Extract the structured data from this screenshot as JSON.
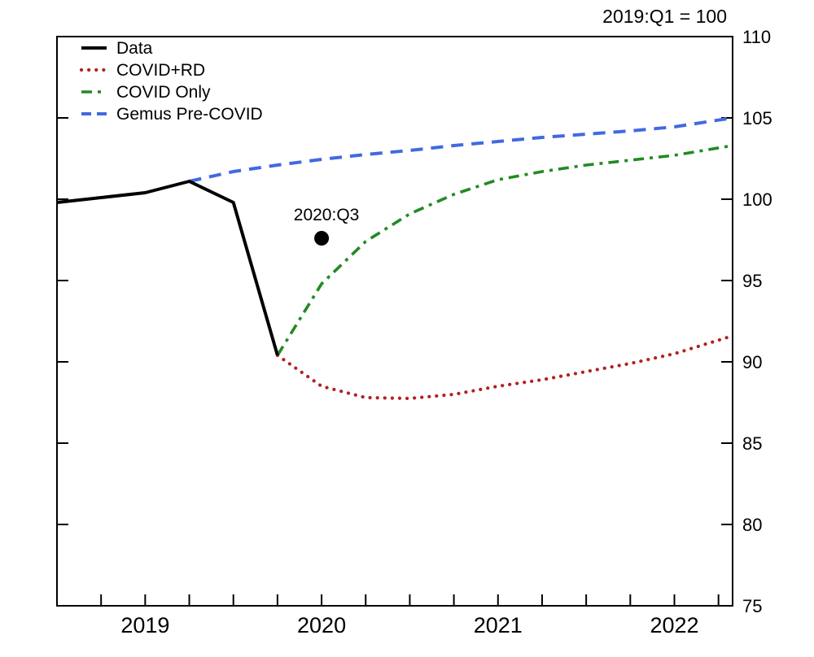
{
  "chart_data": {
    "type": "line",
    "title": "2019:Q1 = 100",
    "xlabel": "",
    "ylabel": "",
    "xlim": [
      2018.5,
      2022.33
    ],
    "ylim": [
      75,
      110
    ],
    "grid": false,
    "legend_position": "top-left",
    "y_ticks": [
      75,
      80,
      85,
      90,
      95,
      100,
      105,
      110
    ],
    "x_minor_tick_step": 0.25,
    "x_year_labels": [
      {
        "x": 2019,
        "label": "2019"
      },
      {
        "x": 2020,
        "label": "2020"
      },
      {
        "x": 2021,
        "label": "2021"
      },
      {
        "x": 2022,
        "label": "2022"
      }
    ],
    "series": [
      {
        "name": "Data",
        "color": "#000000",
        "style": "solid",
        "points": [
          [
            2018.5,
            99.8
          ],
          [
            2018.75,
            100.1
          ],
          [
            2019.0,
            100.4
          ],
          [
            2019.25,
            101.1
          ],
          [
            2019.5,
            99.8
          ],
          [
            2019.75,
            90.4
          ]
        ]
      },
      {
        "name": "COVID+RD",
        "color": "#b22222",
        "style": "dotted",
        "points": [
          [
            2019.75,
            90.4
          ],
          [
            2020.0,
            88.5
          ],
          [
            2020.25,
            87.8
          ],
          [
            2020.5,
            87.75
          ],
          [
            2020.75,
            88.0
          ],
          [
            2021.0,
            88.5
          ],
          [
            2021.25,
            88.9
          ],
          [
            2021.5,
            89.4
          ],
          [
            2021.75,
            89.9
          ],
          [
            2022.0,
            90.5
          ],
          [
            2022.33,
            91.6
          ]
        ]
      },
      {
        "name": "COVID Only",
        "color": "#228b22",
        "style": "dashdot",
        "points": [
          [
            2019.75,
            90.4
          ],
          [
            2020.0,
            94.8
          ],
          [
            2020.25,
            97.4
          ],
          [
            2020.5,
            99.1
          ],
          [
            2020.75,
            100.3
          ],
          [
            2021.0,
            101.2
          ],
          [
            2021.25,
            101.7
          ],
          [
            2021.5,
            102.1
          ],
          [
            2021.75,
            102.4
          ],
          [
            2022.0,
            102.7
          ],
          [
            2022.33,
            103.3
          ]
        ]
      },
      {
        "name": "Gemus Pre-COVID",
        "color": "#4169e1",
        "style": "dashed",
        "points": [
          [
            2019.25,
            101.1
          ],
          [
            2019.5,
            101.7
          ],
          [
            2019.75,
            102.1
          ],
          [
            2020.0,
            102.45
          ],
          [
            2020.25,
            102.75
          ],
          [
            2020.5,
            103.0
          ],
          [
            2020.75,
            103.3
          ],
          [
            2021.0,
            103.55
          ],
          [
            2021.25,
            103.8
          ],
          [
            2021.5,
            104.0
          ],
          [
            2021.75,
            104.2
          ],
          [
            2022.0,
            104.45
          ],
          [
            2022.33,
            105.0
          ]
        ]
      }
    ],
    "annotation": {
      "label": "2020:Q3",
      "x": 2020.0,
      "y": 97.6,
      "marker": "filled-circle",
      "color": "#000000"
    }
  }
}
